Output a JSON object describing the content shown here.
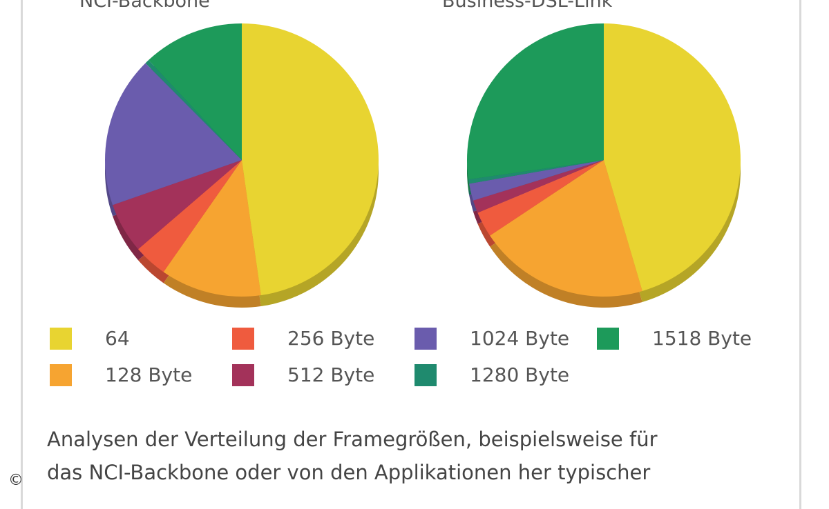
{
  "chart_data": [
    {
      "type": "pie",
      "title": "NCI-Backbone",
      "slices": [
        {
          "label": "64",
          "value": 48,
          "color": "#e8d431"
        },
        {
          "label": "128 Byte",
          "value": 12,
          "color": "#f6a431"
        },
        {
          "label": "256 Byte",
          "value": 4,
          "color": "#ef5b3e"
        },
        {
          "label": "512 Byte",
          "value": 6,
          "color": "#a3325a"
        },
        {
          "label": "1024 Byte",
          "value": 18,
          "color": "#6a5cad"
        },
        {
          "label": "1280 Byte",
          "value": 0.5,
          "color": "#1f8a6e"
        },
        {
          "label": "1518 Byte",
          "value": 12,
          "color": "#1d9a5a"
        }
      ]
    },
    {
      "type": "pie",
      "title": "Business-DSL-Link",
      "slices": [
        {
          "label": "64",
          "value": 45,
          "color": "#e8d431"
        },
        {
          "label": "128 Byte",
          "value": 20,
          "color": "#f6a431"
        },
        {
          "label": "256 Byte",
          "value": 3,
          "color": "#ef5b3e"
        },
        {
          "label": "512 Byte",
          "value": 1.5,
          "color": "#a3325a"
        },
        {
          "label": "1024 Byte",
          "value": 2,
          "color": "#6a5cad"
        },
        {
          "label": "1280 Byte",
          "value": 0.5,
          "color": "#1f8a6e"
        },
        {
          "label": "1518 Byte",
          "value": 27,
          "color": "#1d9a5a"
        }
      ]
    }
  ],
  "legend": [
    {
      "label": "64",
      "color": "#e8d431"
    },
    {
      "label": "256 Byte",
      "color": "#ef5b3e"
    },
    {
      "label": "1024 Byte",
      "color": "#6a5cad"
    },
    {
      "label": "1518 Byte",
      "color": "#1d9a5a"
    },
    {
      "label": "128 Byte",
      "color": "#f6a431"
    },
    {
      "label": "512 Byte",
      "color": "#a3325a"
    },
    {
      "label": "1280 Byte",
      "color": "#1f8a6e"
    }
  ],
  "caption": {
    "line1": "Analysen der Verteilung der Framegrößen, beispielsweise für",
    "line2": "das NCI-Backbone oder von den Applikationen her typischer"
  },
  "copyright": "©"
}
